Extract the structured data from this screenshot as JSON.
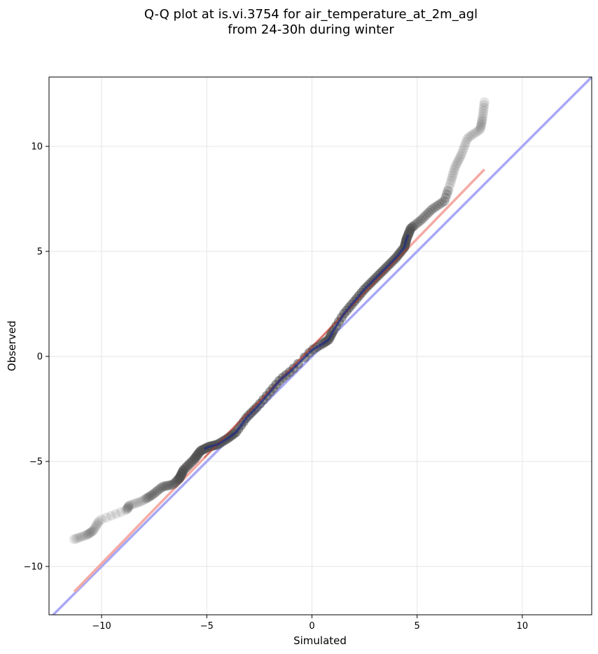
{
  "chart_data": {
    "type": "scatter",
    "title_lines": [
      "Q-Q plot at is.vi.3754 for air_temperature_at_2m_agl",
      "from 24-30h during winter"
    ],
    "xlabel": "Simulated",
    "ylabel": "Observed",
    "xlim": [
      -12.5,
      13.3
    ],
    "ylim": [
      -12.3,
      13.3
    ],
    "xticks": [
      -10,
      -5,
      0,
      5,
      10
    ],
    "yticks": [
      -10,
      -5,
      0,
      5,
      10
    ],
    "xtick_labels": [
      "−10",
      "−5",
      "0",
      "5",
      "10"
    ],
    "ytick_labels": [
      "−10",
      "−5",
      "0",
      "5",
      "10"
    ],
    "grid": true,
    "identity_line_color": "#a8a8f5",
    "fit_line_color": "#f5aaa3",
    "point_color": "#4a4a4a",
    "fit_line": {
      "x": [
        -11.3,
        8.2
      ],
      "y": [
        -11.2,
        8.9
      ]
    },
    "quantile_curve": {
      "x": [
        -11.3,
        -10.7,
        -10.4,
        -10.1,
        -8.8,
        -8.7,
        -8.1,
        -7.6,
        -7.1,
        -6.6,
        -6.3,
        -6.1,
        -5.6,
        -5.3,
        -4.9,
        -4.5,
        -4.0,
        -3.6,
        -3.1,
        -2.6,
        -2.0,
        -1.5,
        -1.0,
        -0.5,
        0.0,
        0.5,
        0.8,
        1.0,
        1.5,
        2.0,
        2.5,
        3.0,
        3.5,
        4.0,
        4.4,
        4.5,
        4.7,
        5.2,
        5.7,
        6.3,
        6.6,
        6.8,
        7.1,
        7.4,
        8.0,
        8.1,
        8.2
      ],
      "y": [
        -8.7,
        -8.5,
        -8.3,
        -7.8,
        -7.3,
        -7.1,
        -6.9,
        -6.6,
        -6.2,
        -6.1,
        -5.8,
        -5.4,
        -4.9,
        -4.5,
        -4.3,
        -4.2,
        -3.9,
        -3.6,
        -2.9,
        -2.4,
        -1.7,
        -1.1,
        -0.7,
        -0.2,
        0.3,
        0.6,
        0.8,
        1.2,
        2.0,
        2.6,
        3.2,
        3.7,
        4.2,
        4.7,
        5.2,
        5.6,
        6.1,
        6.5,
        7.0,
        7.4,
        8.3,
        9.0,
        9.6,
        10.4,
        10.8,
        11.3,
        12.1
      ]
    }
  }
}
